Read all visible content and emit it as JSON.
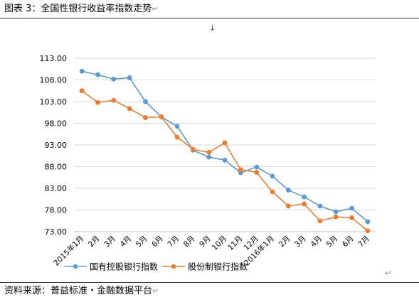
{
  "caption": {
    "text": "图表 3：全国性银行收益率指数走势",
    "mark": "↵"
  },
  "arrow": "↓",
  "after_chart_mark": "↵",
  "source": {
    "text": "资料来源：普益标准・金融数据平台",
    "mark": "↵"
  },
  "colors": {
    "series1": "#5b9bd5",
    "series2": "#ed7d31",
    "grid": "#d9d9d9",
    "axis": "#bfbfbf"
  },
  "chart_data": {
    "type": "line",
    "title": "",
    "xlabel": "",
    "ylabel": "",
    "ylim": [
      73,
      113
    ],
    "yticks": [
      "113.00",
      "108.00",
      "103.00",
      "98.00",
      "93.00",
      "88.00",
      "83.00",
      "78.00",
      "73.00"
    ],
    "grid": true,
    "legend": "bottom",
    "categories": [
      "2015年1月",
      "2月",
      "3月",
      "4月",
      "5月",
      "6月",
      "7月",
      "8月",
      "9月",
      "10月",
      "11月",
      "12月",
      "2016年1月",
      "2月",
      "3月",
      "4月",
      "5月",
      "6月",
      "7月"
    ],
    "series": [
      {
        "name": "国有控股银行指数",
        "values": [
          110.0,
          109.2,
          108.2,
          108.5,
          103.0,
          99.5,
          97.3,
          91.8,
          90.2,
          89.5,
          86.6,
          87.9,
          85.8,
          82.6,
          81.0,
          78.9,
          77.6,
          78.4,
          75.3
        ]
      },
      {
        "name": "股份制银行指数",
        "values": [
          105.5,
          102.8,
          103.3,
          101.4,
          99.3,
          99.5,
          94.8,
          92.0,
          91.3,
          93.5,
          87.3,
          86.7,
          82.2,
          78.9,
          79.4,
          75.5,
          76.4,
          76.2,
          73.2
        ]
      }
    ]
  }
}
